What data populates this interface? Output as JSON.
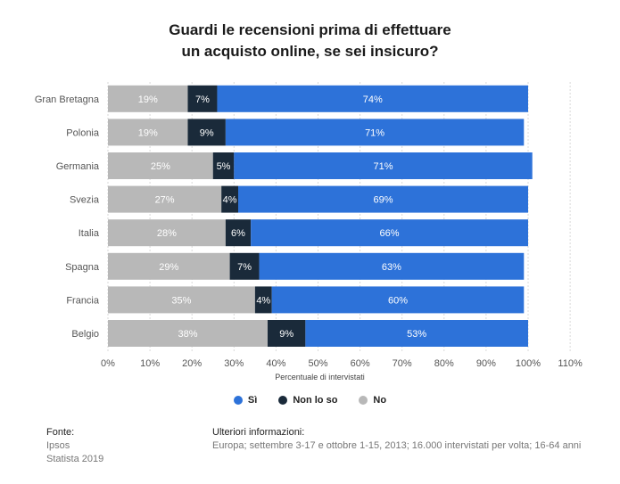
{
  "title_line1": "Guardi le recensioni prima di effettuare",
  "title_line2": "un acquisto online, se sei insicuro?",
  "chart_data": {
    "type": "bar",
    "orientation": "horizontal",
    "stacked": true,
    "title": "Guardi le recensioni prima di effettuare un acquisto online, se sei insicuro?",
    "categories": [
      "Gran Bretagna",
      "Polonia",
      "Germania",
      "Svezia",
      "Italia",
      "Spagna",
      "Francia",
      "Belgio"
    ],
    "series": [
      {
        "name": "No",
        "color": "#b8b8b8",
        "values": [
          19,
          19,
          25,
          27,
          28,
          29,
          35,
          38
        ]
      },
      {
        "name": "Non lo so",
        "color": "#1a2a3a",
        "values": [
          7,
          9,
          5,
          4,
          6,
          7,
          4,
          9
        ]
      },
      {
        "name": "Sì",
        "color": "#2d72d9",
        "values": [
          74,
          71,
          71,
          69,
          66,
          63,
          60,
          53
        ]
      }
    ],
    "xlabel": "Percentuale di intervistati",
    "ylabel": "",
    "xlim": [
      0,
      110
    ],
    "xticks": [
      0,
      10,
      20,
      30,
      40,
      50,
      60,
      70,
      80,
      90,
      100,
      110
    ],
    "tick_suffix": "%",
    "grid": true
  },
  "legend": [
    {
      "label": "Sì",
      "color": "#2d72d9"
    },
    {
      "label": "Non lo so",
      "color": "#1a2a3a"
    },
    {
      "label": "No",
      "color": "#b8b8b8"
    }
  ],
  "footer": {
    "source_title": "Fonte:",
    "source_line1": "Ipsos",
    "source_line2": "Statista 2019",
    "info_title": "Ulteriori informazioni:",
    "info_text": "Europa; settembre 3-17 e ottobre 1-15, 2013; 16.000 intervistati per volta; 16-64 anni"
  }
}
